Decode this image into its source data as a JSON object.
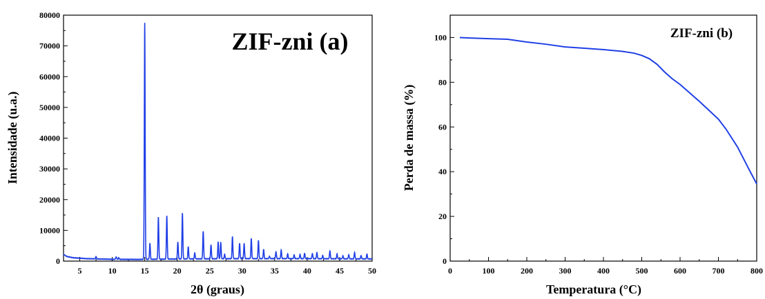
{
  "chart_data": [
    {
      "type": "line",
      "title": "ZIF-zni (a)",
      "xlabel": "2θ (graus)",
      "ylabel": "Intensidade (u.a.)",
      "xlim": [
        2.5,
        50
      ],
      "ylim": [
        0,
        80000
      ],
      "xticks": [
        5,
        10,
        15,
        20,
        25,
        30,
        35,
        40,
        45,
        50
      ],
      "yticks": [
        0,
        10000,
        20000,
        30000,
        40000,
        50000,
        60000,
        70000,
        80000
      ],
      "color": "#1f3fe6",
      "baseline": [
        [
          2.5,
          2200
        ],
        [
          3,
          1500
        ],
        [
          4,
          1100
        ],
        [
          6,
          800
        ],
        [
          10,
          600
        ],
        [
          14,
          550
        ],
        [
          20,
          700
        ],
        [
          30,
          800
        ],
        [
          40,
          800
        ],
        [
          50,
          700
        ]
      ],
      "peaks": [
        [
          7.5,
          1500
        ],
        [
          10.6,
          1400
        ],
        [
          11.0,
          1100
        ],
        [
          15.0,
          77500
        ],
        [
          15.8,
          5800
        ],
        [
          17.1,
          14300
        ],
        [
          18.4,
          14800
        ],
        [
          20.1,
          6300
        ],
        [
          20.8,
          15700
        ],
        [
          21.7,
          4700
        ],
        [
          22.7,
          2700
        ],
        [
          24.0,
          9800
        ],
        [
          25.2,
          5400
        ],
        [
          26.3,
          6200
        ],
        [
          26.7,
          6200
        ],
        [
          27.3,
          2200
        ],
        [
          28.5,
          7900
        ],
        [
          29.6,
          5900
        ],
        [
          30.3,
          5800
        ],
        [
          31.4,
          7400
        ],
        [
          32.5,
          6800
        ],
        [
          33.3,
          3800
        ],
        [
          34.2,
          1600
        ],
        [
          35.2,
          3100
        ],
        [
          36.0,
          3600
        ],
        [
          37.0,
          2400
        ],
        [
          38.0,
          2000
        ],
        [
          38.9,
          2200
        ],
        [
          39.6,
          2600
        ],
        [
          40.8,
          2500
        ],
        [
          41.5,
          2800
        ],
        [
          42.4,
          1800
        ],
        [
          43.5,
          3400
        ],
        [
          44.6,
          2300
        ],
        [
          45.5,
          1700
        ],
        [
          46.4,
          2100
        ],
        [
          47.3,
          2800
        ],
        [
          48.3,
          1900
        ],
        [
          49.2,
          2300
        ]
      ]
    },
    {
      "type": "line",
      "title": "ZIF-zni (b)",
      "xlabel": "Temperatura (°C)",
      "ylabel": "Perda de massa (%)",
      "xlim": [
        0,
        800
      ],
      "ylim": [
        0,
        110
      ],
      "xticks": [
        0,
        100,
        200,
        300,
        400,
        500,
        600,
        700,
        800
      ],
      "yticks": [
        0,
        20,
        40,
        60,
        80,
        100
      ],
      "color": "#1f3fe6",
      "points": [
        [
          25,
          100
        ],
        [
          50,
          99.8
        ],
        [
          100,
          99.5
        ],
        [
          150,
          99.2
        ],
        [
          200,
          98
        ],
        [
          250,
          97
        ],
        [
          300,
          95.8
        ],
        [
          350,
          95.2
        ],
        [
          400,
          94.6
        ],
        [
          450,
          93.8
        ],
        [
          480,
          93
        ],
        [
          500,
          92
        ],
        [
          520,
          90.5
        ],
        [
          540,
          88
        ],
        [
          560,
          84.5
        ],
        [
          580,
          81.5
        ],
        [
          600,
          79
        ],
        [
          650,
          71.5
        ],
        [
          700,
          63.5
        ],
        [
          720,
          59
        ],
        [
          750,
          51
        ],
        [
          780,
          41
        ],
        [
          800,
          34.5
        ]
      ]
    }
  ]
}
